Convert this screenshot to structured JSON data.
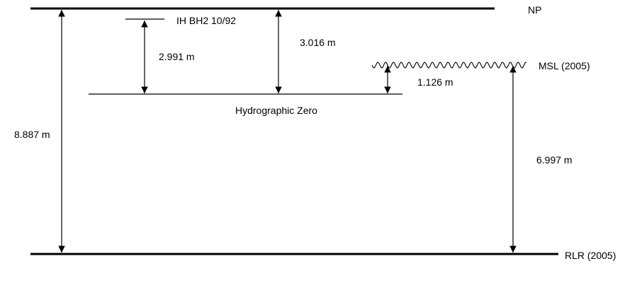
{
  "levels": {
    "np": "NP",
    "ih_bh2": "IH BH2 10/92",
    "msl": "MSL (2005)",
    "hydro_zero": "Hydrographic Zero",
    "rlr": "RLR (2005)"
  },
  "measurements": {
    "np_to_rlr": "8.887 m",
    "ih_to_hz": "2.991 m",
    "np_to_hz": "3.016 m",
    "hz_to_msl": "1.126 m",
    "msl_to_rlr": "6.997 m"
  },
  "colors": {
    "stroke": "#000000",
    "background": "#ffffff"
  }
}
